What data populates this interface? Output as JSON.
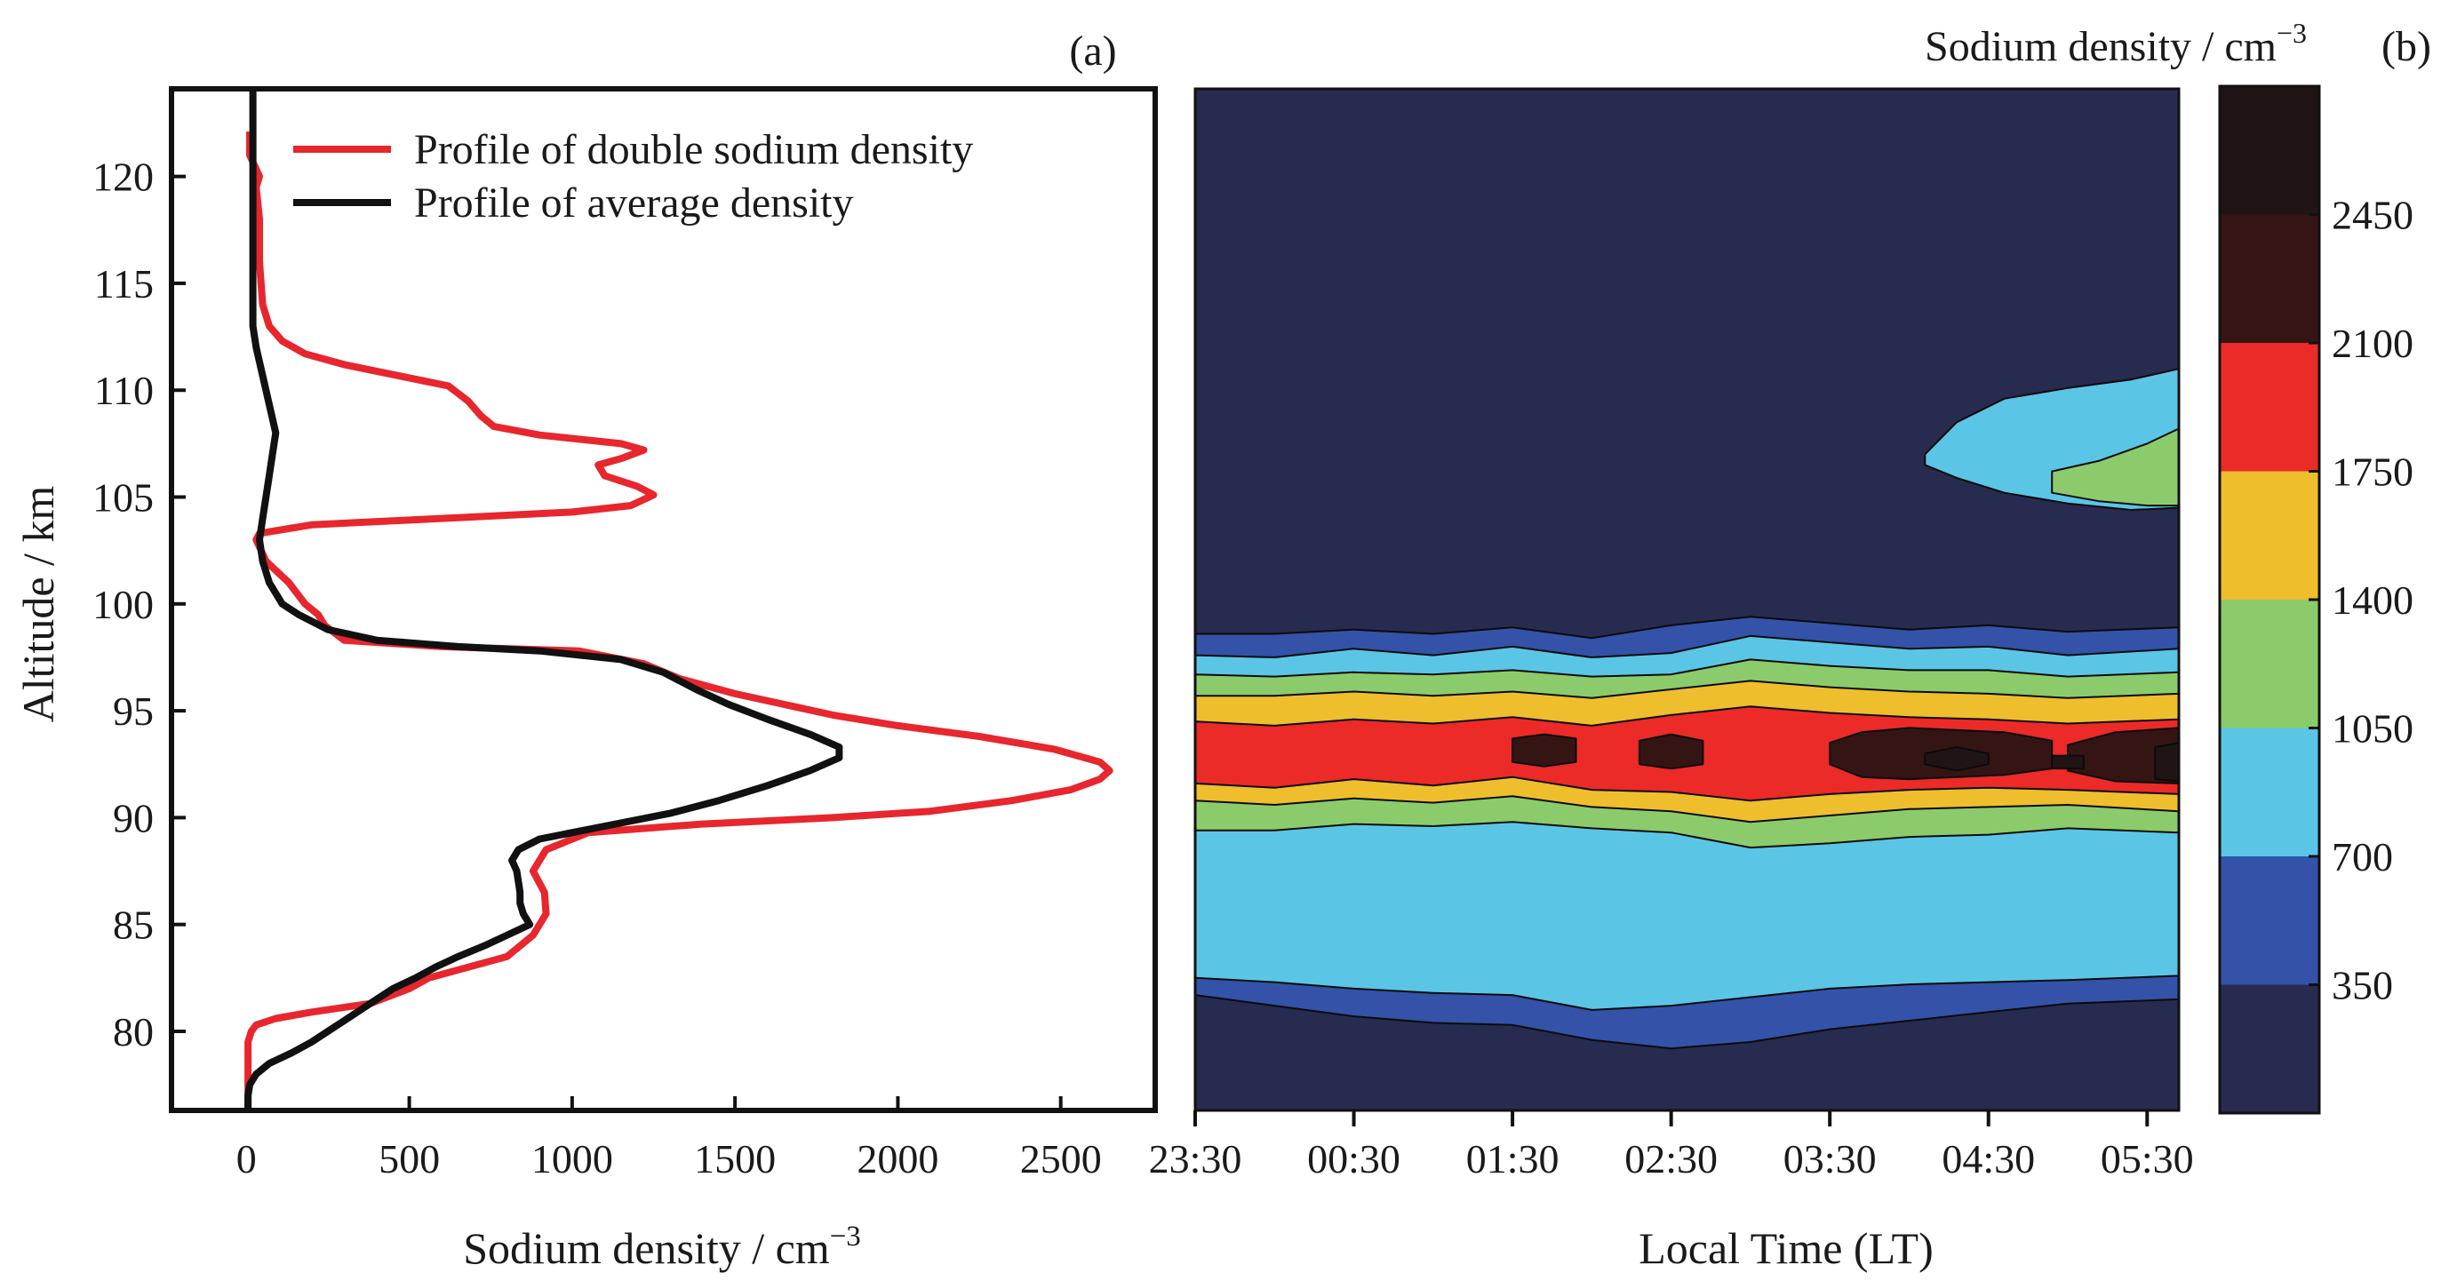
{
  "colors": {
    "double_profile": "#e8262d",
    "average_profile": "#111111",
    "levels": [
      "#272b4f",
      "#3352a8",
      "#5bc5e6",
      "#8ccb6c",
      "#efbe2d",
      "#ec2a28",
      "#351513",
      "#201414"
    ]
  },
  "chart_data": [
    {
      "type": "line",
      "panel_label": "(a)",
      "xlabel": "Sodium density / cm",
      "xlabel_sup": "−3",
      "ylabel": "Altitude / km",
      "xlim": [
        -230,
        2790
      ],
      "ylim": [
        76.3,
        124.1
      ],
      "xticks": [
        "0",
        "500",
        "1000",
        "1500",
        "2000",
        "2500"
      ],
      "yticks": [
        "80",
        "85",
        "90",
        "95",
        "100",
        "105",
        "110",
        "115",
        "120"
      ],
      "legend_position": "top-right",
      "series": [
        {
          "name": "Profile of double sodium density",
          "points": [
            [
              5,
              76.3
            ],
            [
              5,
              78
            ],
            [
              5,
              79.5
            ],
            [
              15,
              80
            ],
            [
              30,
              80.3
            ],
            [
              90,
              80.6
            ],
            [
              200,
              80.9
            ],
            [
              380,
              81.3
            ],
            [
              500,
              82
            ],
            [
              560,
              82.5
            ],
            [
              680,
              83
            ],
            [
              800,
              83.5
            ],
            [
              880,
              84.5
            ],
            [
              920,
              85.5
            ],
            [
              915,
              86.5
            ],
            [
              880,
              87.5
            ],
            [
              920,
              88.5
            ],
            [
              1050,
              89.3
            ],
            [
              1400,
              89.7
            ],
            [
              1800,
              90
            ],
            [
              2100,
              90.3
            ],
            [
              2350,
              90.8
            ],
            [
              2530,
              91.3
            ],
            [
              2620,
              91.8
            ],
            [
              2650,
              92.2
            ],
            [
              2620,
              92.6
            ],
            [
              2480,
              93.2
            ],
            [
              2250,
              93.8
            ],
            [
              2000,
              94.3
            ],
            [
              1800,
              94.8
            ],
            [
              1650,
              95.3
            ],
            [
              1500,
              95.8
            ],
            [
              1330,
              96.5
            ],
            [
              1220,
              97.2
            ],
            [
              1020,
              97.8
            ],
            [
              600,
              98
            ],
            [
              300,
              98.3
            ],
            [
              240,
              99
            ],
            [
              220,
              99.5
            ],
            [
              180,
              100
            ],
            [
              130,
              101
            ],
            [
              60,
              102
            ],
            [
              30,
              103
            ],
            [
              40,
              103.3
            ],
            [
              200,
              103.7
            ],
            [
              600,
              104
            ],
            [
              1000,
              104.3
            ],
            [
              1180,
              104.6
            ],
            [
              1250,
              105.1
            ],
            [
              1200,
              105.5
            ],
            [
              1100,
              106
            ],
            [
              1080,
              106.5
            ],
            [
              1150,
              106.8
            ],
            [
              1220,
              107.2
            ],
            [
              1150,
              107.5
            ],
            [
              900,
              107.9
            ],
            [
              760,
              108.3
            ],
            [
              720,
              108.8
            ],
            [
              680,
              109.5
            ],
            [
              620,
              110.2
            ],
            [
              460,
              110.7
            ],
            [
              300,
              111.2
            ],
            [
              180,
              111.7
            ],
            [
              110,
              112.3
            ],
            [
              70,
              113
            ],
            [
              50,
              114
            ],
            [
              40,
              116
            ],
            [
              40,
              118
            ],
            [
              30,
              119.5
            ],
            [
              40,
              120
            ],
            [
              10,
              121
            ],
            [
              10,
              122.1
            ]
          ]
        },
        {
          "name": "Profile of average density",
          "points": [
            [
              5,
              76.3
            ],
            [
              5,
              77
            ],
            [
              10,
              77.5
            ],
            [
              30,
              78
            ],
            [
              70,
              78.5
            ],
            [
              140,
              79
            ],
            [
              200,
              79.5
            ],
            [
              250,
              80
            ],
            [
              300,
              80.5
            ],
            [
              350,
              81
            ],
            [
              400,
              81.5
            ],
            [
              450,
              82
            ],
            [
              520,
              82.5
            ],
            [
              580,
              83
            ],
            [
              650,
              83.5
            ],
            [
              730,
              84
            ],
            [
              800,
              84.5
            ],
            [
              870,
              85
            ],
            [
              850,
              85.5
            ],
            [
              840,
              86
            ],
            [
              840,
              86.5
            ],
            [
              835,
              87
            ],
            [
              830,
              87.5
            ],
            [
              815,
              88
            ],
            [
              835,
              88.5
            ],
            [
              900,
              89
            ],
            [
              1100,
              89.6
            ],
            [
              1300,
              90.2
            ],
            [
              1450,
              90.8
            ],
            [
              1600,
              91.5
            ],
            [
              1730,
              92.2
            ],
            [
              1820,
              92.8
            ],
            [
              1820,
              93.3
            ],
            [
              1730,
              93.9
            ],
            [
              1600,
              94.6
            ],
            [
              1480,
              95.3
            ],
            [
              1380,
              96
            ],
            [
              1280,
              96.8
            ],
            [
              1150,
              97.4
            ],
            [
              900,
              97.8
            ],
            [
              650,
              98
            ],
            [
              400,
              98.3
            ],
            [
              250,
              98.8
            ],
            [
              160,
              99.5
            ],
            [
              110,
              100
            ],
            [
              70,
              101
            ],
            [
              50,
              102
            ],
            [
              40,
              103
            ],
            [
              50,
              104
            ],
            [
              60,
              105
            ],
            [
              70,
              106
            ],
            [
              80,
              107
            ],
            [
              90,
              108
            ],
            [
              75,
              109
            ],
            [
              60,
              110
            ],
            [
              45,
              111
            ],
            [
              30,
              112
            ],
            [
              20,
              113
            ],
            [
              20,
              114
            ],
            [
              20,
              116
            ],
            [
              20,
              118
            ],
            [
              20,
              120
            ],
            [
              20,
              122
            ],
            [
              20,
              124.1
            ]
          ]
        }
      ]
    },
    {
      "type": "heatmap",
      "panel_label": "(b)",
      "xlabel": "Local Time (LT)",
      "colorbar_title": "Sodium density / cm",
      "colorbar_title_sup": "−3",
      "xticks": [
        "23:30",
        "00:30",
        "01:30",
        "02:30",
        "03:30",
        "04:30",
        "05:30"
      ],
      "x_range_hours": [
        23.5,
        29.7
      ],
      "ylim": [
        76.3,
        124.1
      ],
      "levels": [
        0,
        350,
        700,
        1050,
        1400,
        1750,
        2100,
        2450,
        2800
      ],
      "colorbar_ticks": [
        "350",
        "700",
        "1050",
        "1400",
        "1750",
        "2100",
        "2450"
      ],
      "regions": [
        {
          "min": 350,
          "hours": [
            23.5,
            24,
            24.5,
            25,
            25.5,
            26,
            26.5,
            27,
            27.5,
            28,
            28.5,
            29,
            29.7
          ],
          "bottom": [
            81.7,
            81.2,
            80.7,
            80.4,
            80.3,
            79.6,
            79.2,
            79.5,
            80.1,
            80.5,
            80.9,
            81.3,
            81.5
          ],
          "top": [
            98.6,
            98.6,
            98.8,
            98.6,
            98.9,
            98.4,
            99.0,
            99.4,
            99.1,
            98.8,
            99.0,
            98.7,
            98.9
          ]
        },
        {
          "min": 700,
          "hours": [
            23.5,
            24,
            24.5,
            25,
            25.5,
            26,
            26.5,
            27,
            27.5,
            28,
            28.5,
            29,
            29.7
          ],
          "bottom": [
            82.5,
            82.3,
            82.0,
            81.8,
            81.7,
            81.0,
            81.2,
            81.6,
            82.0,
            82.2,
            82.3,
            82.4,
            82.6
          ],
          "top": [
            97.6,
            97.5,
            97.9,
            97.6,
            98.0,
            97.5,
            97.7,
            98.5,
            98.2,
            97.9,
            98.0,
            97.6,
            97.9
          ]
        },
        {
          "min": 1050,
          "hours": [
            23.5,
            24,
            24.5,
            25,
            25.5,
            26,
            26.5,
            27,
            27.5,
            28,
            28.5,
            29,
            29.7
          ],
          "bottom": [
            89.4,
            89.4,
            89.7,
            89.6,
            89.8,
            89.5,
            89.3,
            88.6,
            88.8,
            89.1,
            89.2,
            89.5,
            89.3
          ],
          "top": [
            96.7,
            96.6,
            96.8,
            96.7,
            96.9,
            96.6,
            96.7,
            97.4,
            97.1,
            96.9,
            96.9,
            96.6,
            96.8
          ]
        },
        {
          "min": 1400,
          "hours": [
            23.5,
            24,
            24.5,
            25,
            25.5,
            26,
            26.5,
            27,
            27.5,
            28,
            28.5,
            29,
            29.7
          ],
          "bottom": [
            90.8,
            90.6,
            90.9,
            90.7,
            91.0,
            90.5,
            90.3,
            89.8,
            90.1,
            90.4,
            90.5,
            90.6,
            90.3
          ],
          "top": [
            95.7,
            95.7,
            95.9,
            95.7,
            95.9,
            95.6,
            96.0,
            96.4,
            96.1,
            95.9,
            95.8,
            95.6,
            95.8
          ]
        },
        {
          "min": 1750,
          "hours": [
            23.5,
            24,
            24.5,
            25,
            25.5,
            26,
            26.5,
            27,
            27.5,
            28,
            28.5,
            29,
            29.7
          ],
          "bottom": [
            91.6,
            91.4,
            91.8,
            91.5,
            91.9,
            91.3,
            91.2,
            90.8,
            91.1,
            91.3,
            91.4,
            91.3,
            91.1
          ],
          "top": [
            94.5,
            94.3,
            94.6,
            94.4,
            94.7,
            94.3,
            94.8,
            95.2,
            94.9,
            94.7,
            94.6,
            94.4,
            94.6
          ]
        },
        {
          "min": 2100,
          "hours": [
            25.5,
            25.7,
            25.9
          ],
          "bottom": [
            92.6,
            92.4,
            92.6
          ],
          "top": [
            93.7,
            93.9,
            93.7
          ]
        },
        {
          "min": 2100,
          "hours": [
            26.3,
            26.5,
            26.7
          ],
          "bottom": [
            92.5,
            92.3,
            92.5
          ],
          "top": [
            93.6,
            93.9,
            93.6
          ]
        },
        {
          "min": 2100,
          "hours": [
            27.5,
            27.7,
            28,
            28.3,
            28.6,
            28.9
          ],
          "bottom": [
            92.5,
            91.9,
            91.8,
            91.9,
            92.0,
            92.3
          ],
          "top": [
            93.5,
            94.0,
            94.2,
            94.1,
            94.0,
            93.6
          ]
        },
        {
          "min": 2100,
          "hours": [
            29.0,
            29.3,
            29.7
          ],
          "bottom": [
            92.2,
            91.7,
            91.6
          ],
          "top": [
            93.4,
            94.0,
            94.2
          ]
        },
        {
          "min": 2450,
          "hours": [
            28.1,
            28.3,
            28.5
          ],
          "bottom": [
            92.5,
            92.2,
            92.5
          ],
          "top": [
            93.0,
            93.3,
            93.0
          ]
        },
        {
          "min": 2450,
          "hours": [
            28.9,
            29.1
          ],
          "bottom": [
            92.3,
            92.3
          ],
          "top": [
            92.9,
            92.9
          ]
        },
        {
          "min": 2450,
          "hours": [
            29.55,
            29.7
          ],
          "bottom": [
            91.8,
            91.7
          ],
          "top": [
            93.3,
            93.5
          ]
        },
        {
          "min": 700,
          "hours": [
            28.1,
            28.3,
            28.6,
            29.0,
            29.4,
            29.7
          ],
          "bottom": [
            106.5,
            105.9,
            105.2,
            104.7,
            104.4,
            104.5
          ],
          "top": [
            107.0,
            108.5,
            109.6,
            110.1,
            110.5,
            111.0
          ]
        },
        {
          "min": 1050,
          "hours": [
            28.9,
            29.2,
            29.5,
            29.7
          ],
          "bottom": [
            105.2,
            104.8,
            104.6,
            104.6
          ],
          "top": [
            106.2,
            106.7,
            107.5,
            108.2
          ]
        }
      ]
    }
  ]
}
